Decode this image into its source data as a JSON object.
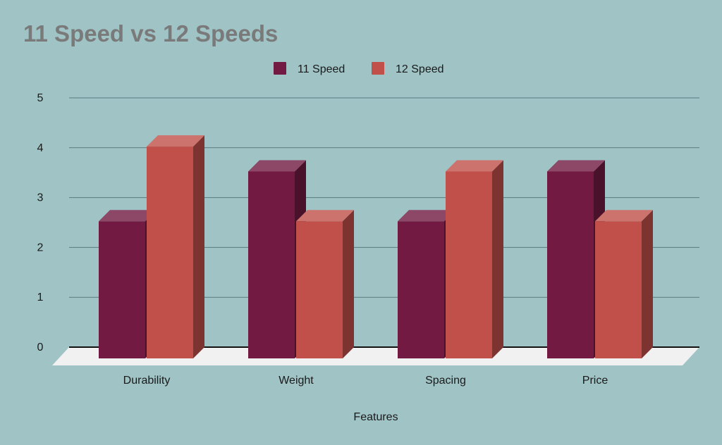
{
  "chart_data": {
    "type": "bar",
    "title": "11 Speed vs 12 Speeds",
    "xlabel": "Features",
    "ylabel": "",
    "categories": [
      "Durability",
      "Weight",
      "Spacing",
      "Price"
    ],
    "series": [
      {
        "name": "11 Speed",
        "values": [
          2.75,
          3.75,
          2.75,
          3.75
        ],
        "color": "#721a41"
      },
      {
        "name": "12 Speed",
        "values": [
          4.25,
          2.75,
          3.75,
          2.75
        ],
        "color": "#c1504a"
      }
    ],
    "ylim": [
      0,
      5
    ],
    "yticks": [
      "0",
      "1",
      "2",
      "3",
      "4",
      "5"
    ],
    "grid": true,
    "legend_position": "top-center",
    "style": "3d-column",
    "colors": {
      "background": "#a0c3c5",
      "title": "#7a7a7a",
      "floor": "#f1f1f1",
      "gridline": "#5a7a7e"
    }
  }
}
